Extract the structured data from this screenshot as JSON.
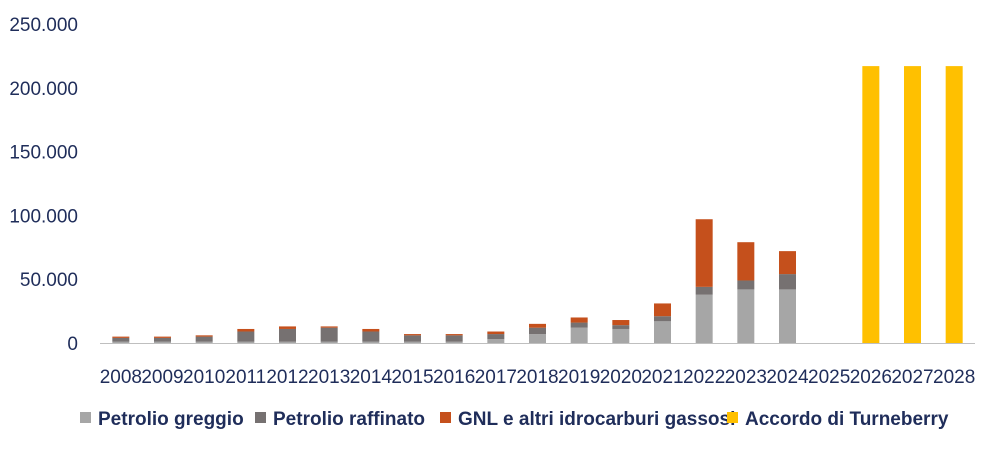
{
  "chart_data": {
    "type": "bar",
    "stacked": true,
    "categories": [
      "2008",
      "2009",
      "2010",
      "2011",
      "2012",
      "2013",
      "2014",
      "2015",
      "2016",
      "2017",
      "2018",
      "2019",
      "2020",
      "2021",
      "2022",
      "2023",
      "2024",
      "2025",
      "2026",
      "2027",
      "2028"
    ],
    "series": [
      {
        "name": "Petrolio greggio",
        "color": "#a6a6a6",
        "values": [
          1000,
          1000,
          1000,
          1000,
          1000,
          1000,
          1000,
          1000,
          1000,
          3000,
          7000,
          12000,
          11000,
          17000,
          38000,
          42000,
          42000,
          0,
          0,
          0,
          0
        ]
      },
      {
        "name": "Petrolio raffinato",
        "color": "#767171",
        "values": [
          3000,
          3000,
          4000,
          8000,
          10000,
          11000,
          8000,
          5000,
          5000,
          4000,
          5000,
          4000,
          3000,
          4000,
          6000,
          7000,
          12000,
          0,
          0,
          0,
          0
        ]
      },
      {
        "name": "GNL e altri idrocarburi gassosi",
        "color": "#c5501c",
        "values": [
          1000,
          1000,
          1000,
          2000,
          2000,
          1000,
          2000,
          1000,
          1000,
          2000,
          3000,
          4000,
          4000,
          10000,
          53000,
          30000,
          18000,
          0,
          0,
          0,
          0
        ]
      },
      {
        "name": "Accordo di Turneberry",
        "color": "#ffc000",
        "values": [
          0,
          0,
          0,
          0,
          0,
          0,
          0,
          0,
          0,
          0,
          0,
          0,
          0,
          0,
          0,
          0,
          0,
          0,
          217000,
          217000,
          217000
        ]
      }
    ],
    "yticks": [
      "0",
      "50.000",
      "100.000",
      "150.000",
      "200.000",
      "250.000"
    ],
    "ylim": [
      0,
      250000
    ],
    "legend_position": "bottom",
    "grid": false
  }
}
